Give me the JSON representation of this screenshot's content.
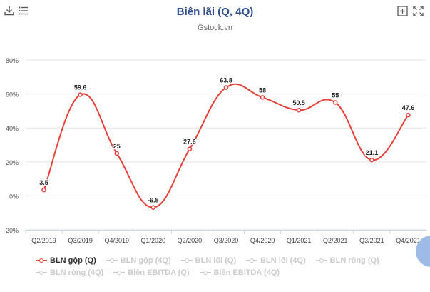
{
  "header": {
    "title": "Biên lãi (Q, 4Q)",
    "subtitle": "Gstock.vn"
  },
  "toolbar": {
    "download_icon": "download-icon",
    "menu_icon": "menu-icon",
    "add_icon": "add-icon",
    "fullscreen_icon": "fullscreen-icon"
  },
  "colors": {
    "series": "#e8413b",
    "title": "#2f4f8f",
    "inactive": "#cccccc"
  },
  "chart_data": {
    "type": "line",
    "title": "Biên lãi (Q, 4Q)",
    "subtitle": "Gstock.vn",
    "categories": [
      "Q2/2019",
      "Q3/2019",
      "Q4/2019",
      "Q1/2020",
      "Q2/2020",
      "Q3/2020",
      "Q4/2020",
      "Q1/2021",
      "Q2/2021",
      "Q3/2021",
      "Q4/2021"
    ],
    "series": [
      {
        "name": "BLN gộp (Q)",
        "values": [
          3.5,
          59.6,
          25,
          -6.8,
          27.6,
          63.8,
          58,
          50.5,
          55,
          21.1,
          47.6
        ]
      }
    ],
    "data_labels": [
      "3.5",
      "59.6",
      "25",
      "-6.8",
      "27.6",
      "63.8",
      "58",
      "50.5",
      "55",
      "21.1",
      "47.6"
    ],
    "yticks": [
      "80%",
      "60%",
      "40%",
      "20%",
      "0%",
      "-20%"
    ],
    "ytick_values": [
      80,
      60,
      40,
      20,
      0,
      -20
    ],
    "ylim": [
      -20,
      80
    ],
    "grid": true,
    "legend_position": "bottom"
  },
  "legend": {
    "row1": [
      {
        "label": "BLN gộp (Q)",
        "active": true
      },
      {
        "label": "BLN gộp (4Q)",
        "active": false
      },
      {
        "label": "BLN lõi (Q)",
        "active": false
      },
      {
        "label": "BLN lõi (4Q)",
        "active": false
      },
      {
        "label": "BLN ròng (Q)",
        "active": false
      }
    ],
    "row2": [
      {
        "label": "BLN ròng (4Q)",
        "active": false
      },
      {
        "label": "Biên EBITDA (Q)",
        "active": false
      },
      {
        "label": "Biên EBITDA (4Q)",
        "active": false
      }
    ]
  }
}
